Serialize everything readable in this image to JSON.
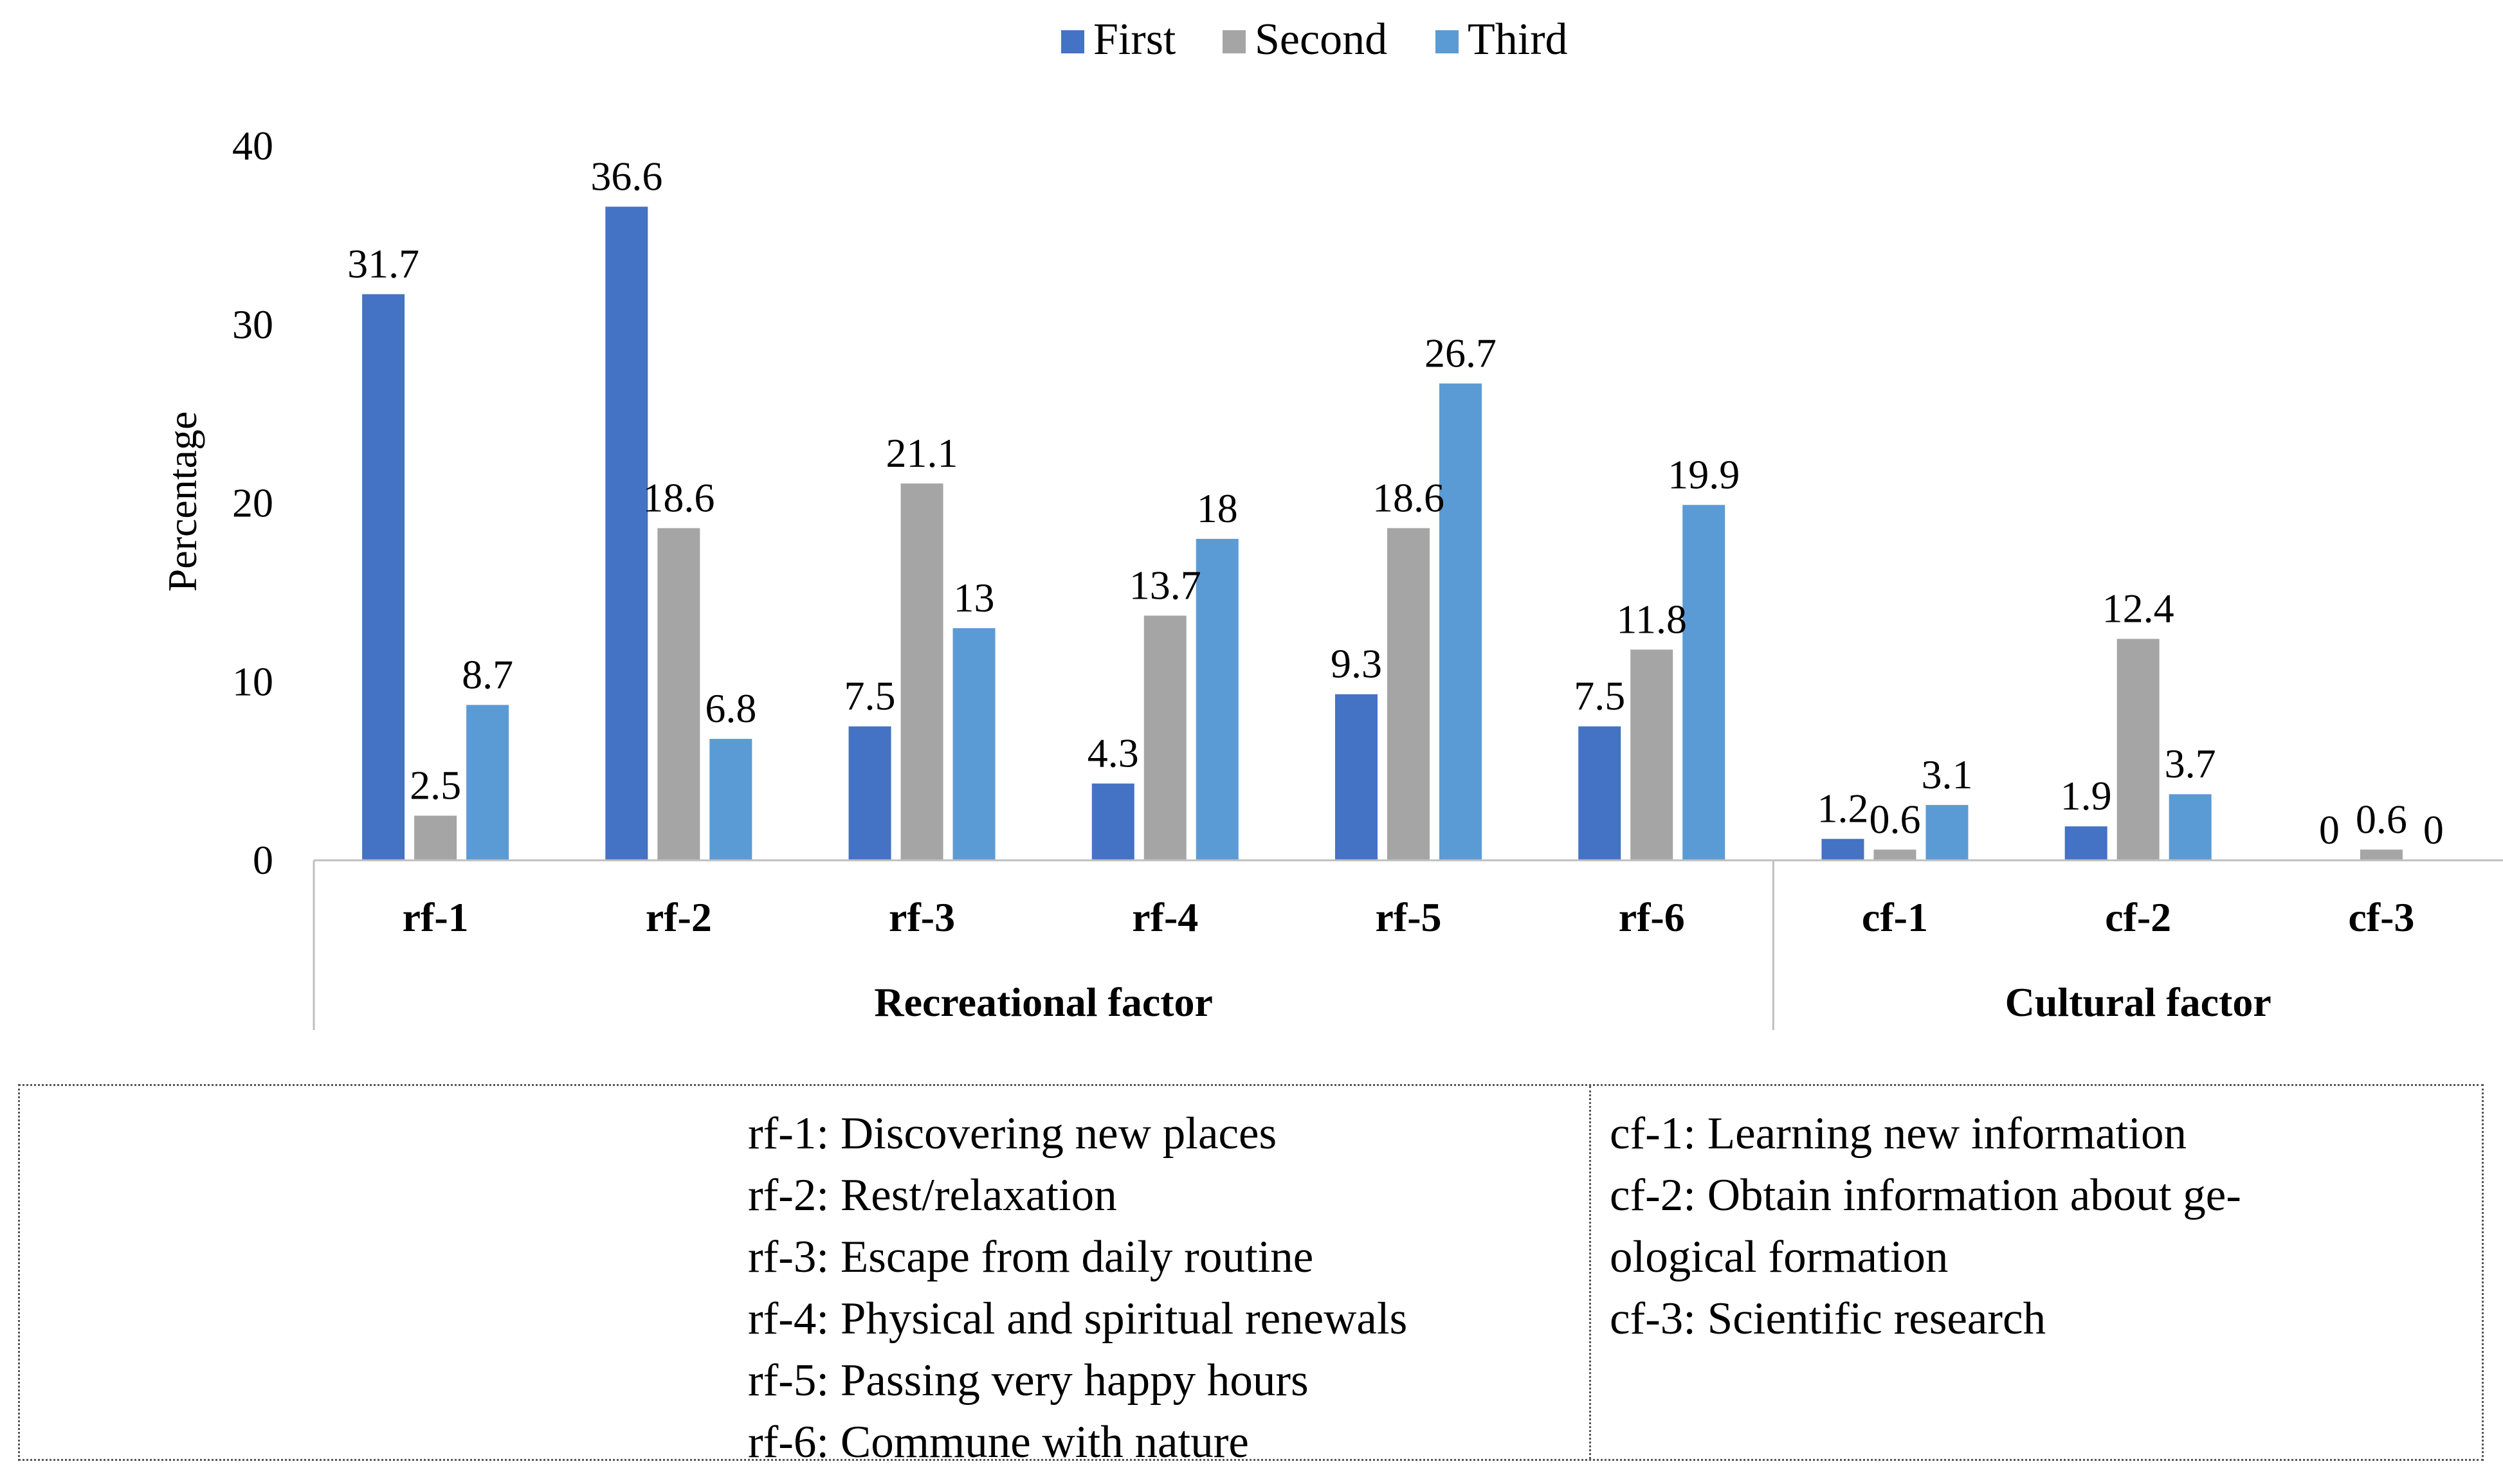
{
  "chart_data": {
    "type": "bar",
    "title": "",
    "xlabel": "",
    "ylabel": "Percentage",
    "ylim": [
      0,
      40
    ],
    "yticks": [
      0,
      10,
      20,
      30,
      40
    ],
    "legend_position": "top-center",
    "categories": [
      "rf-1",
      "rf-2",
      "rf-3",
      "rf-4",
      "rf-5",
      "rf-6",
      "cf-1",
      "cf-2",
      "cf-3"
    ],
    "groups": [
      {
        "label": "Recreational factor",
        "categories": [
          "rf-1",
          "rf-2",
          "rf-3",
          "rf-4",
          "rf-5",
          "rf-6"
        ]
      },
      {
        "label": "Cultural factor",
        "categories": [
          "cf-1",
          "cf-2",
          "cf-3"
        ]
      }
    ],
    "series": [
      {
        "name": "First",
        "color": "#4472C4",
        "values": [
          31.7,
          36.6,
          7.5,
          4.3,
          9.3,
          7.5,
          1.2,
          1.9,
          0
        ]
      },
      {
        "name": "Second",
        "color": "#A5A5A5",
        "values": [
          2.5,
          18.6,
          21.1,
          13.7,
          18.6,
          11.8,
          0.6,
          12.4,
          0.6
        ]
      },
      {
        "name": "Third",
        "color": "#5B9BD5",
        "values": [
          8.7,
          6.8,
          13,
          18,
          26.7,
          19.9,
          3.1,
          3.7,
          0
        ]
      }
    ]
  },
  "notes": {
    "left": [
      "rf-1: Discovering new places",
      "rf-2: Rest/relaxation",
      "rf-3: Escape from daily routine",
      "rf-4: Physical and spiritual renewals",
      "rf-5: Passing very happy hours",
      "rf-6: Commune with nature"
    ],
    "right": [
      "cf-1: Learning new information",
      "cf-2: Obtain information about ge-",
      "ological formation",
      "cf-3: Scientific research"
    ]
  }
}
